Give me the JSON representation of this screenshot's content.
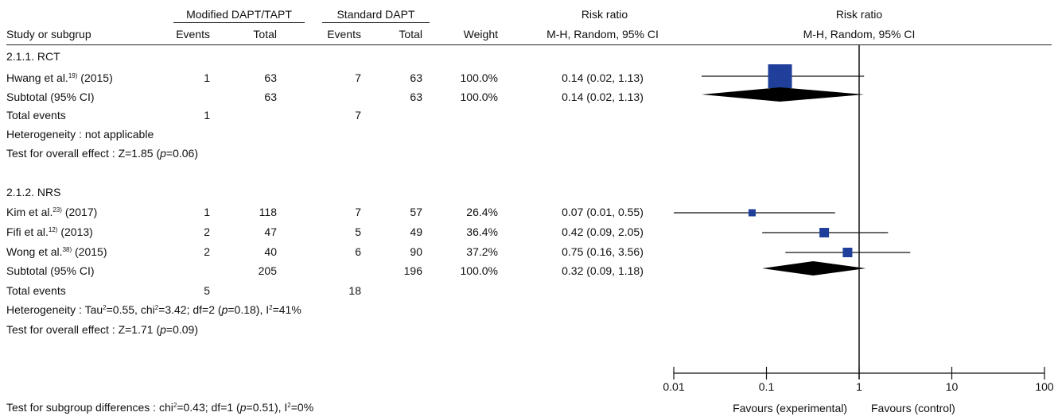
{
  "header": {
    "group1_title": "Modified DAPT/TAPT",
    "group2_title": "Standard DAPT",
    "rr_title": "Risk ratio",
    "rr_method": "M-H, Random, 95% CI",
    "plot_title": "Risk ratio",
    "plot_method": "M-H, Random, 95% CI",
    "col_study": "Study or subgrup",
    "col_events": "Events",
    "col_total": "Total",
    "col_weight": "Weight"
  },
  "subgroups": [
    {
      "title": "2.1.1. RCT",
      "studies": [
        {
          "name": "Hwang et al.",
          "ref": "19)",
          "year": "(2015)",
          "e1": "1",
          "t1": "63",
          "e2": "7",
          "t2": "63",
          "weight": "100.0%",
          "ci": "0.14 (0.02, 1.13)"
        }
      ],
      "subtotal": {
        "label": "Subtotal (95% CI)",
        "t1": "63",
        "t2": "63",
        "weight": "100.0%",
        "ci": "0.14 (0.02, 1.13)"
      },
      "total_events": {
        "label": "Total events",
        "e1": "1",
        "e2": "7"
      },
      "heterogeneity": "Heterogeneity : not applicable",
      "overall_prefix": "Test for overall effect : Z=1.85 (",
      "overall_p": "p",
      "overall_suffix": "=0.06)"
    },
    {
      "title": "2.1.2. NRS",
      "studies": [
        {
          "name": "Kim et al.",
          "ref": "23)",
          "year": "(2017)",
          "e1": "1",
          "t1": "118",
          "e2": "7",
          "t2": "57",
          "weight": "26.4%",
          "ci": "0.07 (0.01, 0.55)"
        },
        {
          "name": "Fifi et al.",
          "ref": "12)",
          "year": "(2013)",
          "e1": "2",
          "t1": "47",
          "e2": "5",
          "t2": "49",
          "weight": "36.4%",
          "ci": "0.42 (0.09, 2.05)"
        },
        {
          "name": "Wong et al.",
          "ref": "38)",
          "year": "(2015)",
          "e1": "2",
          "t1": "40",
          "e2": "6",
          "t2": "90",
          "weight": "37.2%",
          "ci": "0.75 (0.16, 3.56)"
        }
      ],
      "subtotal": {
        "label": "Subtotal (95% CI)",
        "t1": "205",
        "t2": "196",
        "weight": "100.0%",
        "ci": "0.32 (0.09, 1.18)"
      },
      "total_events": {
        "label": "Total events",
        "e1": "5",
        "e2": "18"
      },
      "het_a": "Heterogeneity : Tau",
      "het_sup1": "2",
      "het_b": "=0.55, chi",
      "het_sup2": "2",
      "het_c": "=3.42; df=2 (",
      "het_p": "p",
      "het_d": "=0.18), I",
      "het_sup3": "2",
      "het_e": "=41%",
      "overall_prefix": "Test for overall effect : Z=1.71 (",
      "overall_p": "p",
      "overall_suffix": "=0.09)"
    }
  ],
  "subgroup_diff": {
    "a": "Test for subgroup differences : chi",
    "sup1": "2",
    "b": "=0.43; df=1 (",
    "p": "p",
    "c": "=0.51), I",
    "sup2": "2",
    "d": "=0%"
  },
  "axis": {
    "ticks": [
      "0.01",
      "0.1",
      "1",
      "10",
      "100"
    ],
    "favours_left": "Favours (experimental)",
    "favours_right": "Favours (control)"
  },
  "chart_data": {
    "type": "scatter",
    "scale": "log",
    "xlim": [
      0.01,
      100
    ],
    "reference_line": 1,
    "marker_color": "#1f3f9b",
    "studies": [
      {
        "name": "Hwang et al. (2015)",
        "rr": 0.14,
        "lower": 0.02,
        "upper": 1.13,
        "weight": 100.0
      },
      {
        "name": "Kim et al. (2017)",
        "rr": 0.07,
        "lower": 0.01,
        "upper": 0.55,
        "weight": 26.4
      },
      {
        "name": "Fifi et al. (2013)",
        "rr": 0.42,
        "lower": 0.09,
        "upper": 2.05,
        "weight": 36.4
      },
      {
        "name": "Wong et al. (2015)",
        "rr": 0.75,
        "lower": 0.16,
        "upper": 3.56,
        "weight": 37.2
      }
    ],
    "subtotals": [
      {
        "name": "Subtotal RCT",
        "rr": 0.14,
        "lower": 0.02,
        "upper": 1.13
      },
      {
        "name": "Subtotal NRS",
        "rr": 0.32,
        "lower": 0.09,
        "upper": 1.18
      }
    ]
  }
}
